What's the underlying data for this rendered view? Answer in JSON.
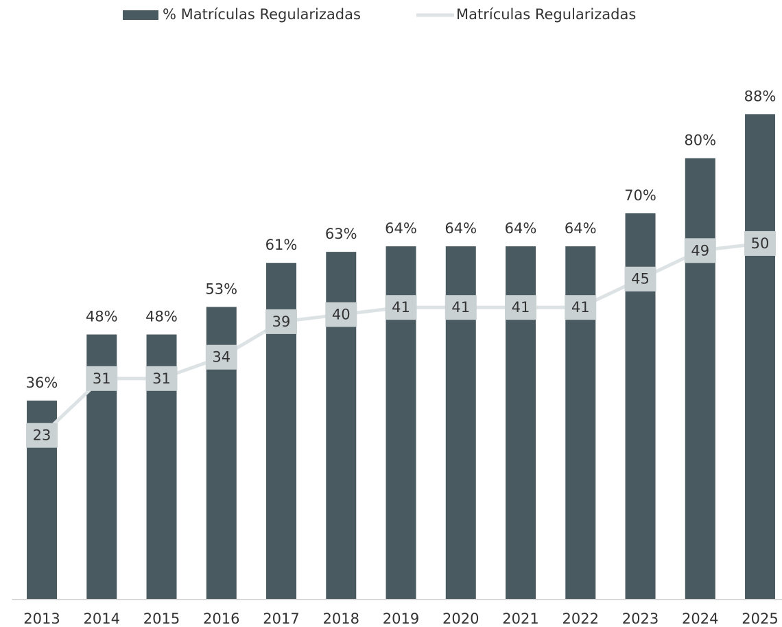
{
  "chart_data": {
    "type": "bar_line",
    "categories": [
      "2013",
      "2014",
      "2015",
      "2016",
      "2017",
      "2018",
      "2019",
      "2020",
      "2021",
      "2022",
      "2023",
      "2024",
      "2025"
    ],
    "series": [
      {
        "name": "% Matrículas Regularizadas",
        "type": "bar",
        "color": "#4a5a61",
        "values": [
          36,
          48,
          48,
          53,
          61,
          63,
          64,
          64,
          64,
          64,
          70,
          80,
          88
        ],
        "value_labels": [
          "36%",
          "48%",
          "48%",
          "53%",
          "61%",
          "63%",
          "64%",
          "64%",
          "64%",
          "64%",
          "70%",
          "80%",
          "88%"
        ]
      },
      {
        "name": "Matrículas Regularizadas",
        "type": "line",
        "axis": "y2",
        "color": "#dde3e5",
        "values": [
          23,
          31,
          31,
          34,
          39,
          40,
          41,
          41,
          41,
          41,
          45,
          49,
          50
        ]
      }
    ],
    "ylim": [
      0,
      100
    ],
    "y2lim": [
      0,
      77.5
    ],
    "legend": "top"
  }
}
